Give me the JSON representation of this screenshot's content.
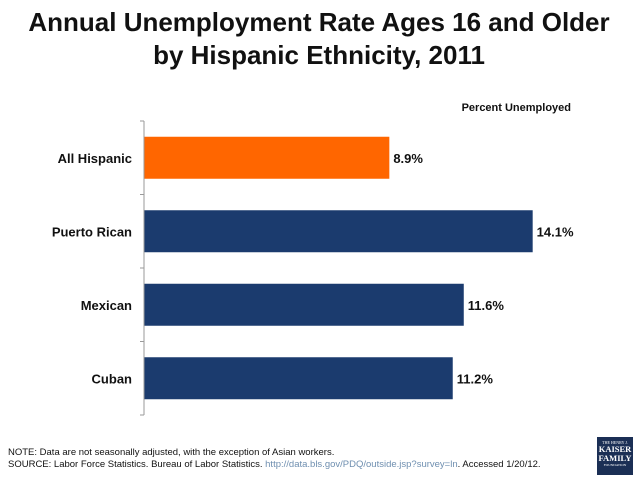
{
  "title": {
    "line1": "Annual Unemployment Rate Ages 16 and Older",
    "line2": "by Hispanic Ethnicity, 2011"
  },
  "chart_data": {
    "type": "bar",
    "orientation": "horizontal",
    "series_label": "Percent Unemployed",
    "categories": [
      "All Hispanic",
      "Puerto Rican",
      "Mexican",
      "Cuban"
    ],
    "values": [
      8.9,
      14.1,
      11.6,
      11.2
    ],
    "data_labels": [
      "8.9%",
      "14.1%",
      "11.6%",
      "11.2%"
    ],
    "colors": [
      "#ff6600",
      "#1b3b6e",
      "#1b3b6e",
      "#1b3b6e"
    ],
    "xlim": [
      0,
      15.2
    ],
    "grid": false
  },
  "footnote": {
    "note": "NOTE:  Data are not seasonally adjusted, with the exception of Asian workers.",
    "source_prefix": "SOURCE:  Labor Force Statistics.  Bureau of Labor Statistics. ",
    "source_link": "http://data.bls.gov/PDQ/outside.jsp?survey=ln",
    "source_suffix": ".  Accessed 1/20/12."
  },
  "logo": {
    "top": "THE HENRY J.",
    "line1": "KAISER",
    "line2": "FAMILY",
    "bottom": "FOUNDATION"
  }
}
